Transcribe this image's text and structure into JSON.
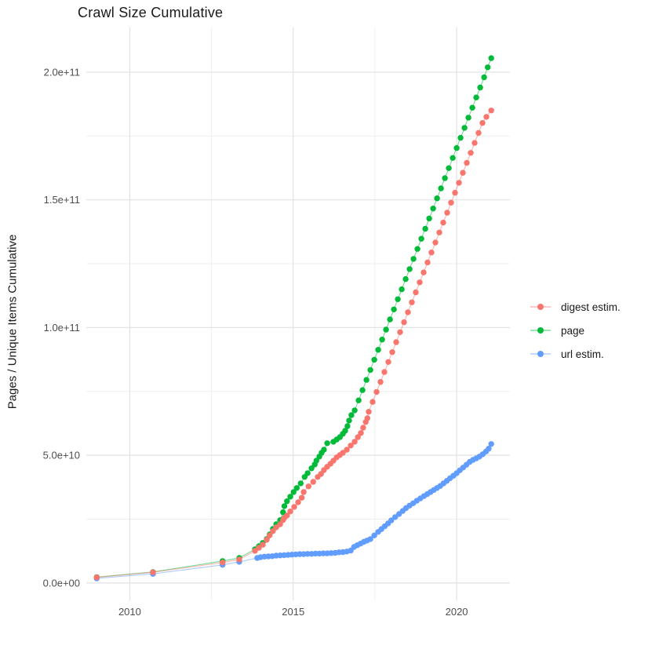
{
  "title": "Crawl Size Cumulative",
  "chart_data": {
    "type": "scatter",
    "title": "Crawl Size Cumulative",
    "xlabel": "",
    "ylabel": "Pages / Unique Items Cumulative",
    "grid": true,
    "legend_position": "right",
    "xlim": [
      2008.67,
      2021.63
    ],
    "ylim_billions": [
      -6.8,
      217.5
    ],
    "x_ticks": [
      {
        "value": 2010,
        "label": "2010"
      },
      {
        "value": 2015,
        "label": "2015"
      },
      {
        "value": 2020,
        "label": "2020"
      }
    ],
    "y_ticks": [
      {
        "value_billions": 0,
        "label": "0.0e+00"
      },
      {
        "value_billions": 50,
        "label": "5.0e+10"
      },
      {
        "value_billions": 100,
        "label": "1.0e+11"
      },
      {
        "value_billions": 150,
        "label": "1.5e+11"
      },
      {
        "value_billions": 200,
        "label": "2.0e+11"
      }
    ],
    "x_minor_ticks": [
      2012.5,
      2017.5
    ],
    "y_minor_ticks_billions": [
      25,
      75,
      125,
      175
    ],
    "series": [
      {
        "name": "digest estim.",
        "color": "#F8766D",
        "points_year_billions": [
          [
            2008.99,
            2.2
          ],
          [
            2010.71,
            4.2
          ],
          [
            2012.84,
            8.0
          ],
          [
            2013.35,
            9.2
          ],
          [
            2013.83,
            12.6
          ],
          [
            2013.95,
            13.8
          ],
          [
            2014.07,
            15.0
          ],
          [
            2014.19,
            16.9
          ],
          [
            2014.28,
            18.6
          ],
          [
            2014.38,
            20.3
          ],
          [
            2014.48,
            21.8
          ],
          [
            2014.6,
            23.0
          ],
          [
            2014.69,
            24.6
          ],
          [
            2014.73,
            25.5
          ],
          [
            2014.81,
            26.4
          ],
          [
            2014.91,
            28.0
          ],
          [
            2015.03,
            29.8
          ],
          [
            2015.15,
            31.6
          ],
          [
            2015.26,
            33.4
          ],
          [
            2015.32,
            35.6
          ],
          [
            2015.47,
            37.8
          ],
          [
            2015.61,
            39.6
          ],
          [
            2015.75,
            41.5
          ],
          [
            2015.85,
            42.7
          ],
          [
            2015.94,
            44.2
          ],
          [
            2016.04,
            45.5
          ],
          [
            2016.14,
            46.7
          ],
          [
            2016.23,
            47.9
          ],
          [
            2016.33,
            49.2
          ],
          [
            2016.43,
            50.1
          ],
          [
            2016.52,
            51.0
          ],
          [
            2016.64,
            52.2
          ],
          [
            2016.76,
            53.8
          ],
          [
            2016.88,
            55.3
          ],
          [
            2016.98,
            57.1
          ],
          [
            2017.07,
            58.7
          ],
          [
            2017.14,
            60.8
          ],
          [
            2017.22,
            63.0
          ],
          [
            2017.27,
            64.5
          ],
          [
            2017.31,
            67.0
          ],
          [
            2017.43,
            70.9
          ],
          [
            2017.55,
            74.8
          ],
          [
            2017.67,
            78.7
          ],
          [
            2017.79,
            82.6
          ],
          [
            2017.91,
            86.5
          ],
          [
            2018.03,
            90.4
          ],
          [
            2018.15,
            94.3
          ],
          [
            2018.27,
            98.2
          ],
          [
            2018.39,
            102.1
          ],
          [
            2018.51,
            106.0
          ],
          [
            2018.63,
            109.9
          ],
          [
            2018.75,
            113.8
          ],
          [
            2018.87,
            117.7
          ],
          [
            2018.99,
            121.6
          ],
          [
            2019.11,
            125.5
          ],
          [
            2019.23,
            129.4
          ],
          [
            2019.35,
            133.3
          ],
          [
            2019.47,
            137.2
          ],
          [
            2019.59,
            141.1
          ],
          [
            2019.71,
            145.0
          ],
          [
            2019.83,
            148.9
          ],
          [
            2019.95,
            152.8
          ],
          [
            2020.07,
            156.7
          ],
          [
            2020.19,
            160.6
          ],
          [
            2020.31,
            164.5
          ],
          [
            2020.43,
            168.4
          ],
          [
            2020.55,
            172.3
          ],
          [
            2020.67,
            176.2
          ],
          [
            2020.79,
            180.1
          ],
          [
            2020.91,
            182.5
          ],
          [
            2021.06,
            185.0
          ]
        ]
      },
      {
        "name": "page",
        "color": "#00BA38",
        "points_year_billions": [
          [
            2008.99,
            2.3
          ],
          [
            2010.71,
            4.3
          ],
          [
            2012.84,
            8.6
          ],
          [
            2013.35,
            9.8
          ],
          [
            2013.83,
            13.2
          ],
          [
            2013.95,
            14.4
          ],
          [
            2014.07,
            15.7
          ],
          [
            2014.19,
            17.2
          ],
          [
            2014.28,
            19.0
          ],
          [
            2014.38,
            21.2
          ],
          [
            2014.48,
            23.0
          ],
          [
            2014.6,
            24.6
          ],
          [
            2014.69,
            27.7
          ],
          [
            2014.73,
            30.1
          ],
          [
            2014.81,
            32.0
          ],
          [
            2014.91,
            33.8
          ],
          [
            2015.01,
            35.6
          ],
          [
            2015.11,
            37.2
          ],
          [
            2015.23,
            39.0
          ],
          [
            2015.35,
            41.5
          ],
          [
            2015.44,
            43.0
          ],
          [
            2015.56,
            44.9
          ],
          [
            2015.66,
            46.4
          ],
          [
            2015.71,
            47.9
          ],
          [
            2015.8,
            49.5
          ],
          [
            2015.87,
            51.0
          ],
          [
            2015.94,
            52.2
          ],
          [
            2016.04,
            54.7
          ],
          [
            2016.23,
            55.3
          ],
          [
            2016.33,
            56.2
          ],
          [
            2016.43,
            57.1
          ],
          [
            2016.52,
            58.4
          ],
          [
            2016.59,
            59.6
          ],
          [
            2016.66,
            61.4
          ],
          [
            2016.71,
            63.6
          ],
          [
            2016.78,
            65.7
          ],
          [
            2016.88,
            67.6
          ],
          [
            2017.0,
            71.5
          ],
          [
            2017.12,
            75.5
          ],
          [
            2017.24,
            79.5
          ],
          [
            2017.36,
            83.4
          ],
          [
            2017.48,
            87.4
          ],
          [
            2017.6,
            91.3
          ],
          [
            2017.72,
            95.3
          ],
          [
            2017.84,
            99.2
          ],
          [
            2017.96,
            103.2
          ],
          [
            2018.08,
            107.1
          ],
          [
            2018.2,
            111.1
          ],
          [
            2018.32,
            115.0
          ],
          [
            2018.44,
            119.0
          ],
          [
            2018.56,
            122.9
          ],
          [
            2018.68,
            126.9
          ],
          [
            2018.8,
            130.8
          ],
          [
            2018.92,
            134.8
          ],
          [
            2019.04,
            138.7
          ],
          [
            2019.16,
            142.7
          ],
          [
            2019.28,
            146.6
          ],
          [
            2019.4,
            150.6
          ],
          [
            2019.52,
            154.5
          ],
          [
            2019.64,
            158.5
          ],
          [
            2019.76,
            162.4
          ],
          [
            2019.88,
            166.4
          ],
          [
            2020.0,
            170.3
          ],
          [
            2020.12,
            174.3
          ],
          [
            2020.24,
            178.2
          ],
          [
            2020.36,
            182.2
          ],
          [
            2020.48,
            186.1
          ],
          [
            2020.6,
            190.1
          ],
          [
            2020.72,
            194.0
          ],
          [
            2020.84,
            198.0
          ],
          [
            2020.95,
            201.9
          ],
          [
            2021.06,
            205.5
          ]
        ]
      },
      {
        "name": "url estim.",
        "color": "#619CFF",
        "points_year_billions": [
          [
            2008.99,
            1.8
          ],
          [
            2010.71,
            3.6
          ],
          [
            2012.84,
            7.1
          ],
          [
            2013.35,
            8.3
          ],
          [
            2013.9,
            9.8
          ],
          [
            2014.0,
            10.1
          ],
          [
            2014.12,
            10.3
          ],
          [
            2014.24,
            10.4
          ],
          [
            2014.36,
            10.5
          ],
          [
            2014.48,
            10.7
          ],
          [
            2014.6,
            10.8
          ],
          [
            2014.72,
            10.9
          ],
          [
            2014.84,
            11.0
          ],
          [
            2014.96,
            11.1
          ],
          [
            2015.08,
            11.2
          ],
          [
            2015.2,
            11.3
          ],
          [
            2015.32,
            11.3
          ],
          [
            2015.44,
            11.4
          ],
          [
            2015.56,
            11.4
          ],
          [
            2015.68,
            11.5
          ],
          [
            2015.8,
            11.5
          ],
          [
            2015.92,
            11.6
          ],
          [
            2016.04,
            11.6
          ],
          [
            2016.16,
            11.7
          ],
          [
            2016.28,
            11.8
          ],
          [
            2016.4,
            12.0
          ],
          [
            2016.52,
            12.1
          ],
          [
            2016.64,
            12.3
          ],
          [
            2016.76,
            12.7
          ],
          [
            2016.86,
            14.1
          ],
          [
            2016.96,
            14.8
          ],
          [
            2017.06,
            15.4
          ],
          [
            2017.16,
            16.1
          ],
          [
            2017.26,
            16.6
          ],
          [
            2017.36,
            17.2
          ],
          [
            2017.48,
            18.6
          ],
          [
            2017.6,
            20.0
          ],
          [
            2017.7,
            21.1
          ],
          [
            2017.8,
            22.2
          ],
          [
            2017.9,
            23.3
          ],
          [
            2018.0,
            24.5
          ],
          [
            2018.12,
            25.8
          ],
          [
            2018.24,
            27.0
          ],
          [
            2018.35,
            28.2
          ],
          [
            2018.45,
            29.3
          ],
          [
            2018.56,
            30.3
          ],
          [
            2018.67,
            31.2
          ],
          [
            2018.78,
            32.2
          ],
          [
            2018.89,
            33.1
          ],
          [
            2019.0,
            34.0
          ],
          [
            2019.1,
            34.8
          ],
          [
            2019.2,
            35.6
          ],
          [
            2019.3,
            36.4
          ],
          [
            2019.4,
            37.2
          ],
          [
            2019.5,
            38.0
          ],
          [
            2019.6,
            39.0
          ],
          [
            2019.7,
            40.0
          ],
          [
            2019.8,
            41.0
          ],
          [
            2019.9,
            42.0
          ],
          [
            2020.0,
            43.0
          ],
          [
            2020.1,
            44.1
          ],
          [
            2020.2,
            45.2
          ],
          [
            2020.3,
            46.3
          ],
          [
            2020.4,
            47.4
          ],
          [
            2020.5,
            48.2
          ],
          [
            2020.6,
            48.8
          ],
          [
            2020.7,
            49.5
          ],
          [
            2020.8,
            50.4
          ],
          [
            2020.9,
            51.5
          ],
          [
            2020.98,
            52.6
          ],
          [
            2021.06,
            54.4
          ]
        ]
      }
    ]
  },
  "style": {
    "background": "#ffffff",
    "grid_major_color": "#e2e2e2",
    "grid_minor_color": "#efefef",
    "axis_text_color": "#4d4d4d",
    "title_color": "#1a1a1a"
  }
}
